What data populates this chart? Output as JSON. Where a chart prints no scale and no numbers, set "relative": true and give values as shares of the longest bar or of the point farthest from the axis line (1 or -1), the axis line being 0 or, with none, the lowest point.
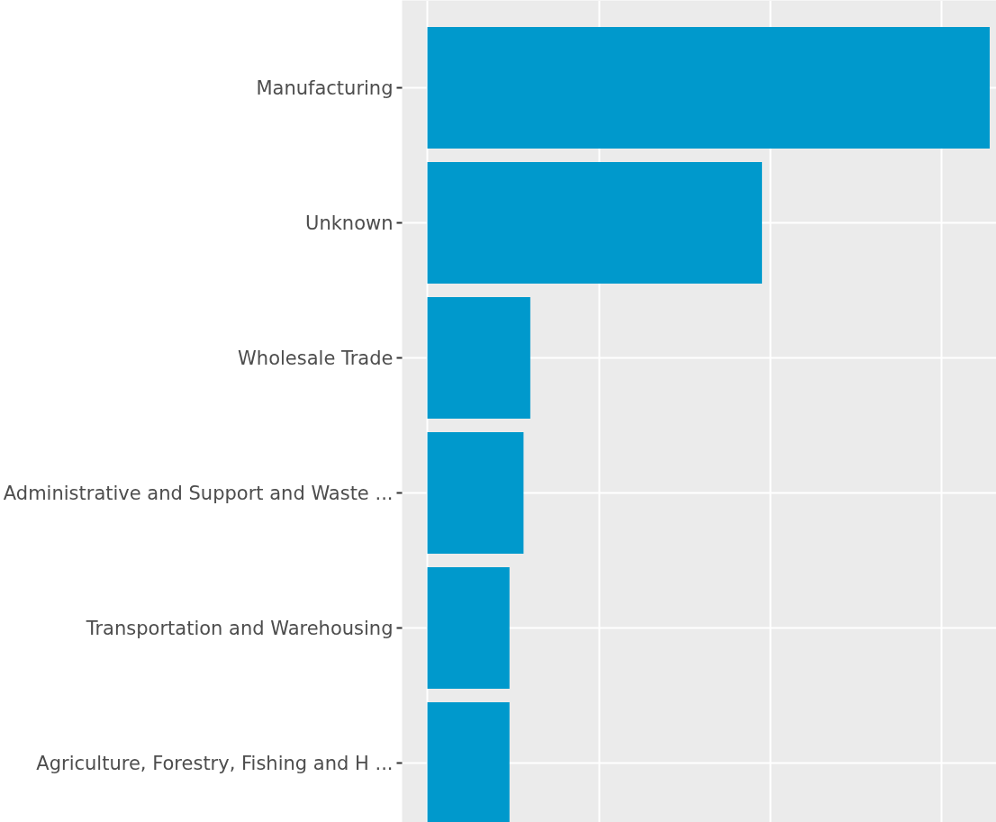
{
  "chart_data": {
    "type": "bar",
    "orientation": "horizontal",
    "relative": true,
    "categories": [
      "Manufacturing",
      "Unknown",
      "Wholesale Trade",
      "Administrative and Support and Waste ...",
      "Transportation and Warehousing",
      "Agriculture, Forestry, Fishing and H ..."
    ],
    "values": [
      1,
      0.595,
      0.183,
      0.171,
      0.146,
      0.146
    ],
    "color": "#0099cc",
    "grid": true
  }
}
